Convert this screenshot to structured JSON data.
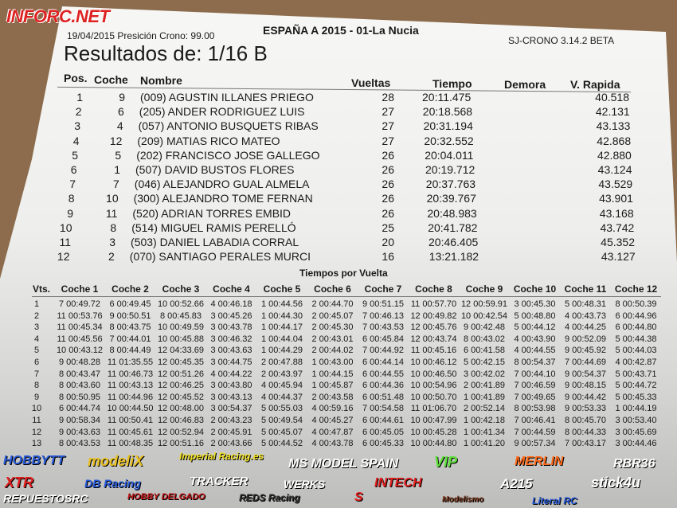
{
  "watermark": "INFORC.NET",
  "header": {
    "date_line": "19/04/2015 Presición Crono: 99.00",
    "event": "ESPAÑA A 2015 - 01-La Nucia",
    "software": "SJ-CRONO 3.14.2 BETA",
    "title": "Resultados de: 1/16 B"
  },
  "results": {
    "columns": [
      "Pos.",
      "Coche",
      "Nombre",
      "Vueltas",
      "Tiempo",
      "Demora",
      "V. Rapida"
    ],
    "rows": [
      {
        "pos": "1",
        "coche": "9",
        "nombre": "(009) AGUSTIN ILLANES PRIEGO",
        "vueltas": "28",
        "tiempo": "20:11.475",
        "vrapida": "40.518"
      },
      {
        "pos": "2",
        "coche": "6",
        "nombre": "(205) ANDER RODRIGUEZ LUIS",
        "vueltas": "27",
        "tiempo": "20:18.568",
        "vrapida": "42.131"
      },
      {
        "pos": "3",
        "coche": "4",
        "nombre": "(057) ANTONIO BUSQUETS RIBAS",
        "vueltas": "27",
        "tiempo": "20:31.194",
        "vrapida": "43.133"
      },
      {
        "pos": "4",
        "coche": "12",
        "nombre": "(209) MATIAS RICO MATEO",
        "vueltas": "27",
        "tiempo": "20:32.552",
        "vrapida": "42.868"
      },
      {
        "pos": "5",
        "coche": "5",
        "nombre": "(202) FRANCISCO JOSE GALLEGO",
        "vueltas": "26",
        "tiempo": "20:04.011",
        "vrapida": "42.880"
      },
      {
        "pos": "6",
        "coche": "1",
        "nombre": "(507) DAVID BUSTOS FLORES",
        "vueltas": "26",
        "tiempo": "20:19.712",
        "vrapida": "43.124"
      },
      {
        "pos": "7",
        "coche": "7",
        "nombre": "(046) ALEJANDRO GUAL ALMELA",
        "vueltas": "26",
        "tiempo": "20:37.763",
        "vrapida": "43.529"
      },
      {
        "pos": "8",
        "coche": "10",
        "nombre": "(300) ALEJANDRO TOME FERNAN",
        "vueltas": "26",
        "tiempo": "20:39.767",
        "vrapida": "43.901"
      },
      {
        "pos": "9",
        "coche": "11",
        "nombre": "(520) ADRIAN TORRES EMBID",
        "vueltas": "26",
        "tiempo": "20:48.983",
        "vrapida": "43.168"
      },
      {
        "pos": "10",
        "coche": "8",
        "nombre": "(514) MIGUEL RAMIS PERELLÓ",
        "vueltas": "25",
        "tiempo": "20:41.782",
        "vrapida": "43.742"
      },
      {
        "pos": "11",
        "coche": "3",
        "nombre": "(503) DANIEL LABADIA CORRAL",
        "vueltas": "20",
        "tiempo": "20:46.405",
        "vrapida": "45.352"
      },
      {
        "pos": "12",
        "coche": "2",
        "nombre": "(070) SANTIAGO PERALES MURCI",
        "vueltas": "16",
        "tiempo": "13:21.182",
        "vrapida": "43.127"
      }
    ]
  },
  "laps": {
    "title": "Tiempos por Vuelta",
    "columns": [
      "Vts.",
      "Coche 1",
      "Coche 2",
      "Coche 3",
      "Coche 4",
      "Coche 5",
      "Coche 6",
      "Coche 7",
      "Coche 8",
      "Coche 9",
      "Coche 10",
      "Coche 11",
      "Coche 12"
    ],
    "rows": [
      [
        "1",
        "7 00:49.72",
        "6 00:49.45",
        "10 00:52.66",
        "4 00:46.18",
        "1 00:44.56",
        "2 00:44.70",
        "9 00:51.15",
        "11 00:57.70",
        "12 00:59.91",
        "3 00:45.30",
        "5 00:48.31",
        "8 00:50.39"
      ],
      [
        "2",
        "11 00:53.76",
        "9 00:50.51",
        "8 00:45.83",
        "3 00:45.26",
        "1 00:44.30",
        "2 00:45.07",
        "7 00:46.13",
        "12 00:49.82",
        "10 00:42.54",
        "5 00:48.80",
        "4 00:43.73",
        "6 00:44.96"
      ],
      [
        "3",
        "11 00:45.34",
        "8 00:43.75",
        "10 00:49.59",
        "3 00:43.78",
        "1 00:44.17",
        "2 00:45.30",
        "7 00:43.53",
        "12 00:45.76",
        "9 00:42.48",
        "5 00:44.12",
        "4 00:44.25",
        "6 00:44.80"
      ],
      [
        "4",
        "11 00:45.56",
        "7 00:44.01",
        "10 00:45.88",
        "3 00:46.32",
        "1 00:44.04",
        "2 00:43.01",
        "6 00:45.84",
        "12 00:43.74",
        "8 00:43.02",
        "4 00:43.90",
        "9 00:52.09",
        "5 00:44.38"
      ],
      [
        "5",
        "10 00:43.12",
        "8 00:44.49",
        "12 04:33.69",
        "3 00:43.63",
        "1 00:44.29",
        "2 00:44.02",
        "7 00:44.92",
        "11 00:45.16",
        "6 00:41.58",
        "4 00:44.55",
        "9 00:45.92",
        "5 00:44.03"
      ],
      [
        "6",
        "9 00:48.28",
        "11 01:35.55",
        "12 00:45.35",
        "3 00:44.75",
        "2 00:47.88",
        "1 00:43.00",
        "6 00:44.14",
        "10 00:46.12",
        "5 00:42.15",
        "8 00:54.37",
        "7 00:44.69",
        "4 00:42.87"
      ],
      [
        "7",
        "8 00:43.47",
        "11 00:46.73",
        "12 00:51.26",
        "4 00:44.22",
        "2 00:43.97",
        "1 00:44.15",
        "6 00:44.55",
        "10 00:46.50",
        "3 00:42.02",
        "7 00:44.10",
        "9 00:54.37",
        "5 00:43.71"
      ],
      [
        "8",
        "8 00:43.60",
        "11 00:43.13",
        "12 00:46.25",
        "3 00:43.80",
        "4 00:45.94",
        "1 00:45.87",
        "6 00:44.36",
        "10 00:54.96",
        "2 00:41.89",
        "7 00:46.59",
        "9 00:48.15",
        "5 00:44.72"
      ],
      [
        "9",
        "8 00:50.95",
        "11 00:44.96",
        "12 00:45.52",
        "3 00:43.13",
        "4 00:44.37",
        "2 00:43.58",
        "6 00:51.48",
        "10 00:50.70",
        "1 00:41.89",
        "7 00:49.65",
        "9 00:44.42",
        "5 00:45.33"
      ],
      [
        "10",
        "6 00:44.74",
        "10 00:44.50",
        "12 00:48.00",
        "3 00:54.37",
        "5 00:55.03",
        "4 00:59.16",
        "7 00:54.58",
        "11 01:06.70",
        "2 00:52.14",
        "8 00:53.98",
        "9 00:53.33",
        "1 00:44.19"
      ],
      [
        "11",
        "9 00:58.34",
        "11 00:50.41",
        "12 00:46.83",
        "2 00:43.23",
        "5 00:49.54",
        "4 00:45.27",
        "6 00:44.61",
        "10 00:47.99",
        "1 00:42.18",
        "7 00:46.41",
        "8 00:45.70",
        "3 00:53.40"
      ],
      [
        "12",
        "9 00:43.63",
        "11 00:45.61",
        "12 00:52.94",
        "2 00:45.91",
        "5 00:45.07",
        "4 00:47.87",
        "6 00:45.05",
        "10 00:45.28",
        "1 00:41.34",
        "7 00:44.59",
        "8 00:44.33",
        "3 00:45.69"
      ],
      [
        "13",
        "8 00:43.53",
        "11 00:48.35",
        "12 00:51.16",
        "2 00:43.66",
        "5 00:44.52",
        "4 00:43.78",
        "6 00:45.33",
        "10 00:44.80",
        "1 00:41.20",
        "9 00:57.34",
        "7 00:43.17",
        "3 00:44.46"
      ]
    ]
  },
  "sponsors": [
    {
      "name": "HOBBYTT",
      "color": "#2a5bd7"
    },
    {
      "name": "modeliX",
      "color": "#e8c020"
    },
    {
      "name": "Imperial Racing.es",
      "color": "#f0e020"
    },
    {
      "name": "MS MODEL SPAIN",
      "color": "#ffffff"
    },
    {
      "name": "VIP",
      "color": "#5ee03a"
    },
    {
      "name": "MERLIN",
      "color": "#ff6a1a"
    },
    {
      "name": "RBR36",
      "color": "#ffffff"
    },
    {
      "name": "XTR",
      "color": "#e02020"
    },
    {
      "name": "DB Racing",
      "color": "#2a5bd7"
    },
    {
      "name": "TRACKER",
      "color": "#ffffff"
    },
    {
      "name": "WERKS",
      "color": "#ffffff"
    },
    {
      "name": "INTECH",
      "color": "#e02020"
    },
    {
      "name": "A215",
      "color": "#ffffff"
    },
    {
      "name": "stick4u",
      "color": "#ffffff"
    },
    {
      "name": "REPUESTOSRC",
      "color": "#ffffff"
    },
    {
      "name": "HOBBY DELGADO",
      "color": "#c01818"
    },
    {
      "name": "REDS Racing",
      "color": "#333333"
    },
    {
      "name": "S",
      "color": "#e02020"
    },
    {
      "name": "Modelismo",
      "color": "#7a3a20"
    },
    {
      "name": "Literal RC",
      "color": "#2a5bd7"
    }
  ]
}
